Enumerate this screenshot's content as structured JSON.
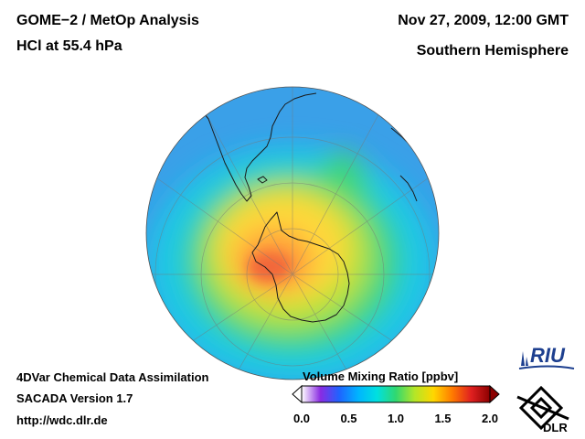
{
  "header": {
    "title": "GOME−2 / MetOp Analysis",
    "subtitle": "HCl at 55.4 hPa",
    "datetime": "Nov 27, 2009, 12:00 GMT",
    "region": "Southern Hemisphere"
  },
  "footer": {
    "line1": "4DVar Chemical Data Assimilation",
    "line2": "SACADA Version 1.7",
    "line3": "http://wdc.dlr.de"
  },
  "colorbar": {
    "title": "Volume Mixing Ratio [ppbv]",
    "ticks": [
      "0.0",
      "0.5",
      "1.0",
      "1.5",
      "2.0"
    ],
    "colors": [
      "#ffffff",
      "#8a2be2",
      "#1e64ff",
      "#00b4ff",
      "#00e0e0",
      "#30d870",
      "#b4e628",
      "#ffd700",
      "#ff7a00",
      "#e02020",
      "#8b0000"
    ]
  },
  "logos": {
    "riu": "RIU",
    "dlr": "DLR"
  },
  "map_colors": {
    "ocean_blue": "#3aa0e8",
    "cyan": "#1ec8e6",
    "green": "#3cd67c",
    "yellow_green": "#b6e23a",
    "yellow": "#ffd83a",
    "orange": "#ff9a3a",
    "orange_red": "#f2683a",
    "coast": "#1a1a1a",
    "grid": "#777777"
  }
}
